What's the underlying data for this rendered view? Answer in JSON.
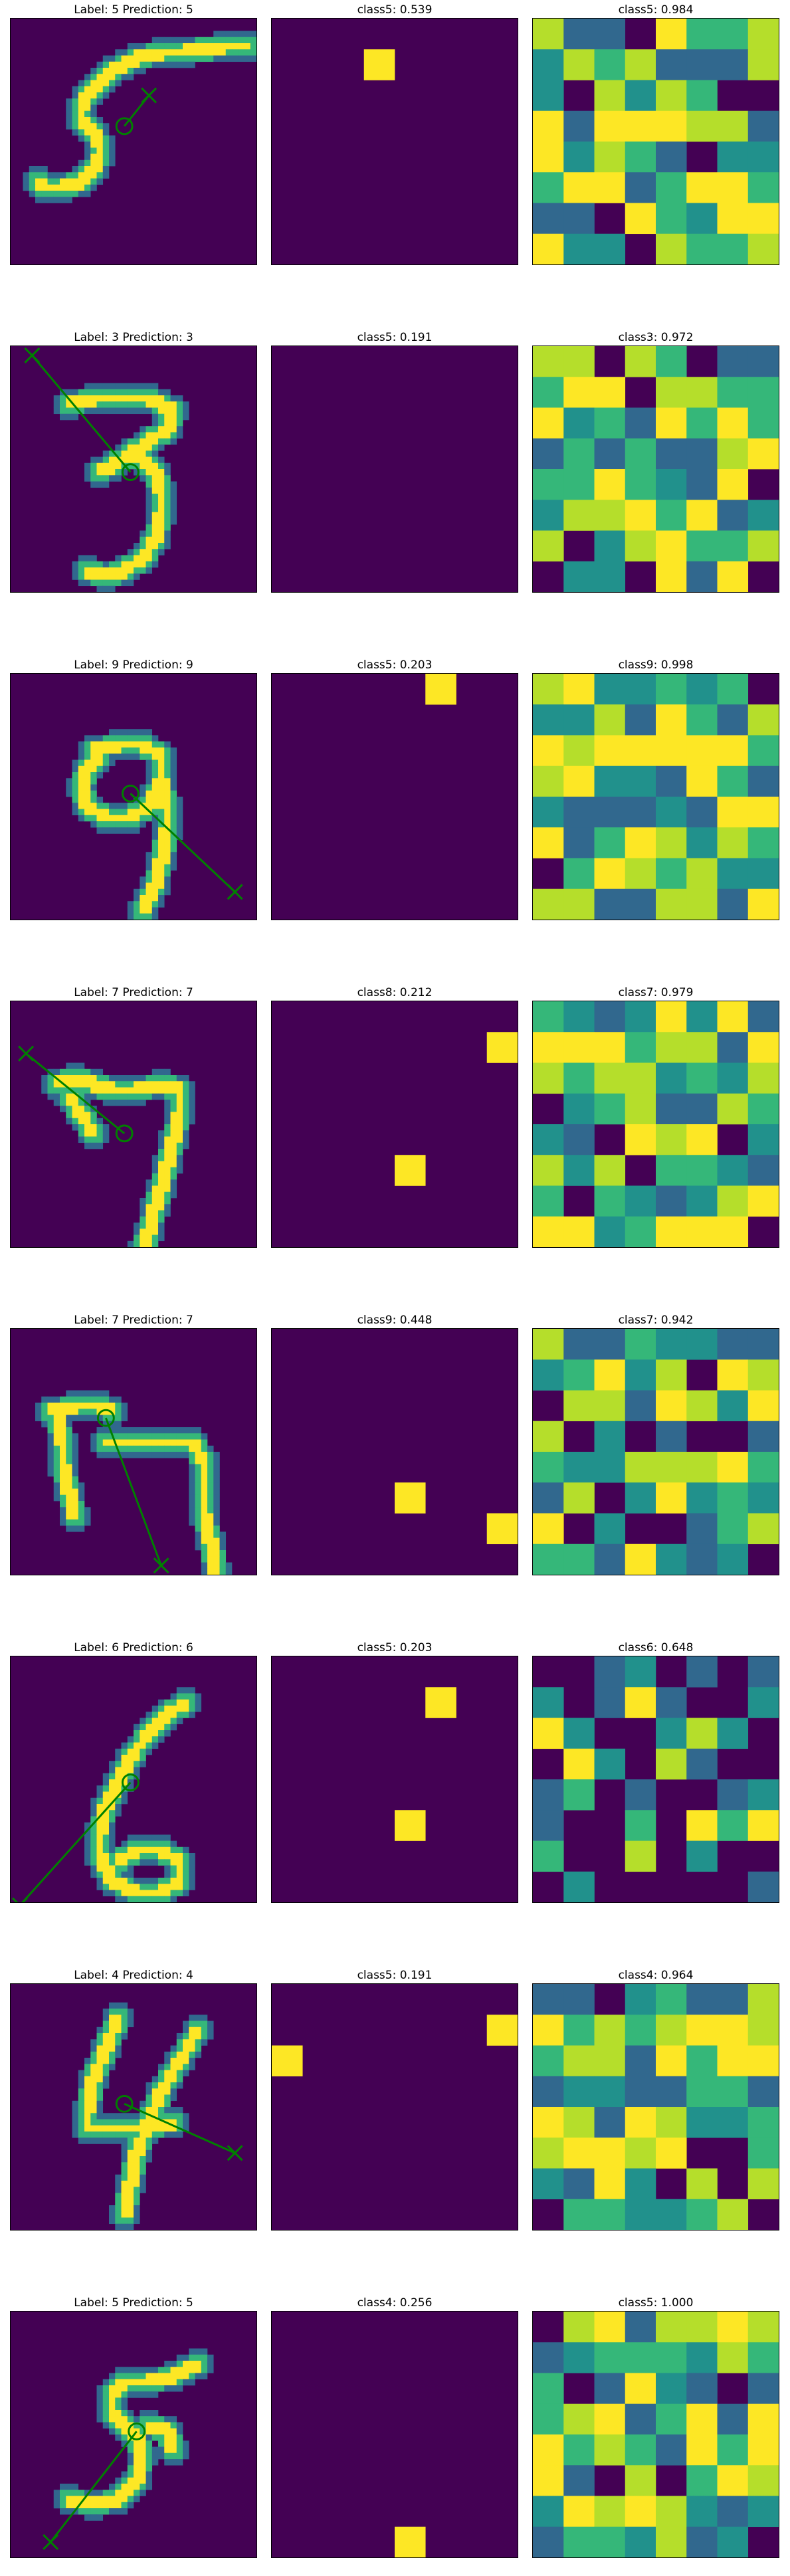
{
  "palette": {
    "background": "#440154",
    "pen": "#fde725",
    "pen_mid": "#35b779",
    "pen_low": "#31688e",
    "overlay": "#008000"
  },
  "chart_data": [
    {
      "type": "heatmap",
      "row": 1,
      "label": "5",
      "prediction": "5",
      "title": "Label: 5 Prediction: 5",
      "digit_strokes": [
        [
          [
            20,
            6
          ],
          [
            18,
            7
          ],
          [
            16,
            8
          ],
          [
            14,
            10
          ],
          [
            12,
            12
          ],
          [
            11,
            14
          ],
          [
            11,
            16
          ],
          [
            12,
            17
          ],
          [
            13,
            18
          ],
          [
            14,
            20
          ],
          [
            14,
            22
          ],
          [
            13,
            24
          ],
          [
            11,
            26
          ],
          [
            8,
            27
          ],
          [
            5,
            27
          ],
          [
            4,
            26
          ]
        ],
        [
          [
            20,
            6
          ],
          [
            24,
            5
          ],
          [
            28,
            5
          ],
          [
            34,
            4
          ],
          [
            38,
            4
          ]
        ]
      ],
      "overlay": {
        "circle": [
          18,
          17
        ],
        "cross": [
          22,
          12
        ]
      },
      "maps": [
        {
          "title": "class5: 0.539",
          "class": "class5",
          "score": 0.539
        },
        {
          "title": "class5: 0.984",
          "class": "class5",
          "score": 0.984
        }
      ]
    },
    {
      "type": "heatmap",
      "row": 2,
      "label": "3",
      "prediction": "3",
      "title": "Label: 3 Prediction: 3",
      "digit_strokes": [
        [
          [
            9,
            9
          ],
          [
            13,
            8
          ],
          [
            17,
            8
          ],
          [
            22,
            8
          ],
          [
            26,
            10
          ],
          [
            25,
            13
          ],
          [
            22,
            15
          ],
          [
            19,
            17
          ],
          [
            16,
            19
          ],
          [
            14,
            20
          ]
        ],
        [
          [
            20,
            17
          ],
          [
            23,
            20
          ],
          [
            24,
            23
          ],
          [
            24,
            27
          ],
          [
            23,
            31
          ],
          [
            21,
            34
          ],
          [
            18,
            36
          ],
          [
            15,
            37
          ],
          [
            12,
            36
          ]
        ]
      ],
      "overlay": {
        "circle": [
          19,
          20
        ],
        "cross": [
          3,
          1
        ]
      },
      "maps": [
        {
          "title": "class5: 0.191",
          "class": "class5",
          "score": 0.191
        },
        {
          "title": "class3: 0.972",
          "class": "class3",
          "score": 0.972
        }
      ]
    },
    {
      "type": "heatmap",
      "row": 3,
      "label": "9",
      "prediction": "9",
      "title": "Label: 9 Prediction: 9",
      "digit_strokes": [
        [
          [
            13,
            12
          ],
          [
            17,
            11
          ],
          [
            21,
            11
          ],
          [
            24,
            13
          ],
          [
            24,
            17
          ],
          [
            22,
            21
          ],
          [
            19,
            23
          ],
          [
            15,
            23
          ],
          [
            12,
            21
          ],
          [
            11,
            18
          ],
          [
            12,
            15
          ],
          [
            14,
            13
          ]
        ],
        [
          [
            24,
            17
          ],
          [
            25,
            21
          ],
          [
            25,
            25
          ],
          [
            24,
            30
          ],
          [
            23,
            34
          ],
          [
            21,
            38
          ]
        ]
      ],
      "overlay": {
        "circle": [
          19,
          19
        ],
        "cross": [
          36,
          35
        ]
      },
      "maps": [
        {
          "title": "class5: 0.203",
          "class": "class5",
          "score": 0.203
        },
        {
          "title": "class9: 0.998",
          "class": "class9",
          "score": 0.998
        }
      ]
    },
    {
      "type": "heatmap",
      "row": 4,
      "label": "7",
      "prediction": "7",
      "title": "Label: 7 Prediction: 7",
      "digit_strokes": [
        [
          [
            7,
            13
          ],
          [
            10,
            12
          ],
          [
            13,
            13
          ],
          [
            16,
            14
          ],
          [
            20,
            14
          ],
          [
            24,
            13
          ],
          [
            27,
            14
          ],
          [
            27,
            18
          ],
          [
            26,
            22
          ],
          [
            25,
            26
          ],
          [
            24,
            30
          ],
          [
            23,
            33
          ],
          [
            22,
            37
          ],
          [
            21,
            40
          ]
        ],
        [
          [
            9,
            15
          ],
          [
            11,
            18
          ],
          [
            13,
            21
          ]
        ]
      ],
      "overlay": {
        "circle": [
          18,
          21
        ],
        "cross": [
          2,
          8
        ]
      },
      "maps": [
        {
          "title": "class8: 0.212",
          "class": "class8",
          "score": 0.212
        },
        {
          "title": "class7: 0.979",
          "class": "class7",
          "score": 0.979
        }
      ]
    },
    {
      "type": "heatmap",
      "row": 5,
      "label": "7",
      "prediction": "7",
      "title": "Label: 7 Prediction: 7",
      "digit_strokes": [
        [
          [
            6,
            13
          ],
          [
            10,
            12
          ],
          [
            14,
            12
          ],
          [
            16,
            13
          ]
        ],
        [
          [
            15,
            18
          ],
          [
            19,
            18
          ],
          [
            24,
            18
          ],
          [
            29,
            18
          ],
          [
            31,
            21
          ],
          [
            31,
            26
          ],
          [
            31,
            30
          ],
          [
            32,
            34
          ],
          [
            33,
            39
          ]
        ],
        [
          [
            7,
            14
          ],
          [
            8,
            18
          ],
          [
            8,
            22
          ],
          [
            9,
            26
          ],
          [
            10,
            30
          ]
        ]
      ],
      "overlay": {
        "circle": [
          15,
          14
        ],
        "cross": [
          24,
          38
        ]
      },
      "maps": [
        {
          "title": "class9: 0.448",
          "class": "class9",
          "score": 0.448
        },
        {
          "title": "class7: 0.942",
          "class": "class7",
          "score": 0.942
        }
      ]
    },
    {
      "type": "heatmap",
      "row": 6,
      "label": "6",
      "prediction": "6",
      "title": "Label: 6 Prediction: 6",
      "digit_strokes": [
        [
          [
            28,
            7
          ],
          [
            25,
            9
          ],
          [
            22,
            12
          ],
          [
            19,
            16
          ],
          [
            17,
            20
          ],
          [
            15,
            24
          ],
          [
            14,
            28
          ],
          [
            14,
            32
          ],
          [
            16,
            36
          ],
          [
            20,
            38
          ],
          [
            24,
            38
          ],
          [
            27,
            36
          ],
          [
            27,
            33
          ],
          [
            24,
            31
          ],
          [
            20,
            31
          ],
          [
            17,
            33
          ]
        ]
      ],
      "overlay": {
        "circle": [
          19,
          20
        ],
        "cross": [
          1,
          40
        ]
      },
      "maps": [
        {
          "title": "class5: 0.203",
          "class": "class5",
          "score": 0.203
        },
        {
          "title": "class6: 0.648",
          "class": "class6",
          "score": 0.648
        }
      ]
    },
    {
      "type": "heatmap",
      "row": 7,
      "label": "4",
      "prediction": "4",
      "title": "Label: 4 Prediction: 4",
      "digit_strokes": [
        [
          [
            17,
            5
          ],
          [
            15,
            10
          ],
          [
            13,
            15
          ],
          [
            12,
            20
          ],
          [
            12,
            23
          ],
          [
            16,
            23
          ],
          [
            21,
            23
          ],
          [
            26,
            22
          ]
        ],
        [
          [
            30,
            7
          ],
          [
            27,
            12
          ],
          [
            24,
            17
          ],
          [
            22,
            22
          ],
          [
            20,
            27
          ],
          [
            19,
            32
          ],
          [
            18,
            37
          ]
        ]
      ],
      "overlay": {
        "circle": [
          18,
          19
        ],
        "cross": [
          36,
          27
        ]
      },
      "maps": [
        {
          "title": "class5: 0.191",
          "class": "class5",
          "score": 0.191
        },
        {
          "title": "class4: 0.964",
          "class": "class4",
          "score": 0.964
        }
      ]
    },
    {
      "type": "heatmap",
      "row": 8,
      "label": "5",
      "prediction": "5",
      "title": "Label: 5 Prediction: 5",
      "digit_strokes": [
        [
          [
            30,
            8
          ],
          [
            26,
            10
          ],
          [
            22,
            11
          ],
          [
            18,
            11
          ],
          [
            16,
            13
          ],
          [
            16,
            16
          ],
          [
            18,
            18
          ],
          [
            20,
            20
          ],
          [
            21,
            23
          ],
          [
            20,
            27
          ],
          [
            17,
            30
          ],
          [
            13,
            31
          ],
          [
            9,
            30
          ]
        ],
        [
          [
            22,
            18
          ],
          [
            25,
            19
          ],
          [
            26,
            22
          ]
        ]
      ],
      "overlay": {
        "circle": [
          20,
          19
        ],
        "cross": [
          6,
          37
        ]
      },
      "maps": [
        {
          "title": "class4: 0.256",
          "class": "class4",
          "score": 0.256
        },
        {
          "title": "class5: 1.000",
          "class": "class5",
          "score": 1.0
        }
      ]
    }
  ]
}
